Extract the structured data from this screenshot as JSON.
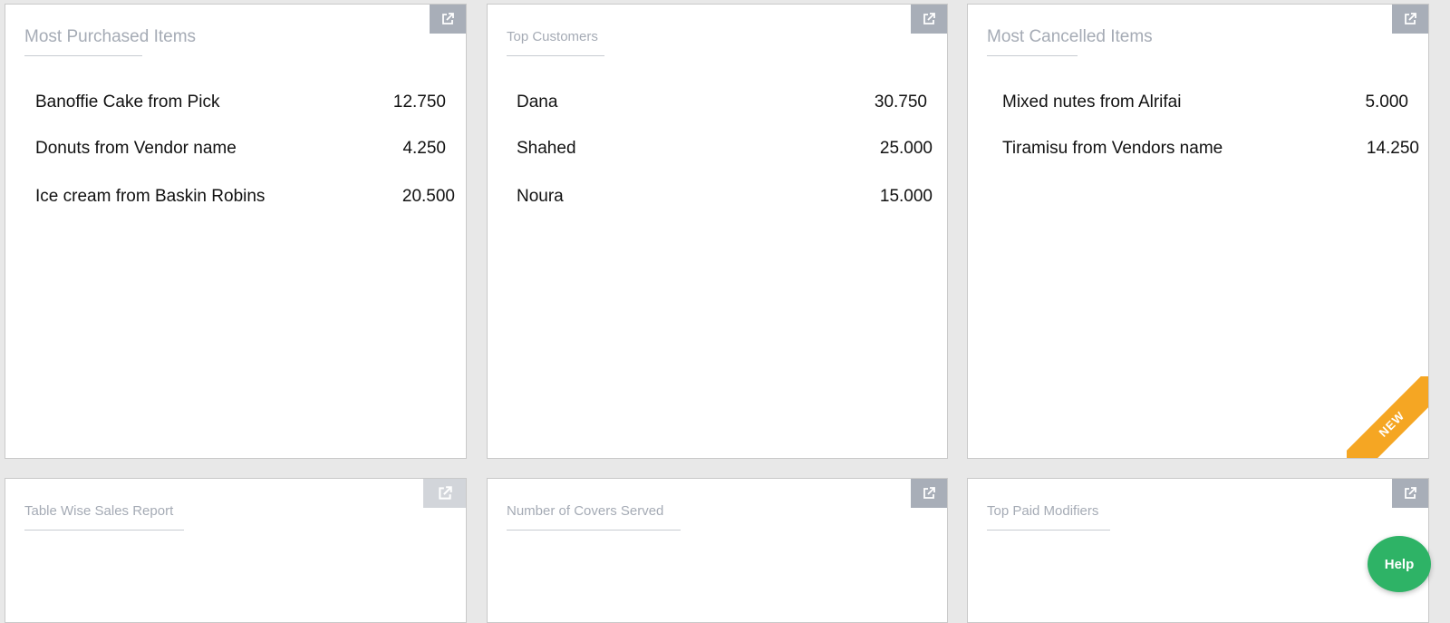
{
  "cards": [
    {
      "title": "Most Purchased Items",
      "expand_icon": "external-link-icon",
      "rows": [
        {
          "label": "Banoffie Cake  from Pick",
          "value": "12.750"
        },
        {
          "label": "Donuts from Vendor name",
          "value": "4.250"
        },
        {
          "label": "Ice cream from Baskin Robins",
          "value": "20.500"
        }
      ]
    },
    {
      "title": "Top Customers",
      "expand_icon": "external-link-icon",
      "rows": [
        {
          "label": "Dana",
          "value": "30.750"
        },
        {
          "label": "Shahed",
          "value": "25.000"
        },
        {
          "label": "Noura",
          "value": "15.000"
        }
      ]
    },
    {
      "title": "Most Cancelled Items",
      "expand_icon": "external-link-icon",
      "badge": "NEW",
      "rows": [
        {
          "label": "Mixed nutes from Alrifai",
          "value": "5.000"
        },
        {
          "label": "Tiramisu from Vendors name",
          "value": "14.250"
        }
      ]
    },
    {
      "title": "Table Wise Sales Report",
      "expand_icon": "external-link-icon"
    },
    {
      "title": "Number of Covers Served",
      "expand_icon": "external-link-icon"
    },
    {
      "title": "Top Paid Modifiers",
      "expand_icon": "external-link-icon"
    }
  ],
  "help": {
    "label": "Help"
  },
  "colors": {
    "background": "#e8e8e8",
    "card": "#ffffff",
    "title": "#a5abb5",
    "expand_button": "#a8aeb8",
    "new_ribbon": "#f5a623",
    "help_button": "#2eb366"
  }
}
